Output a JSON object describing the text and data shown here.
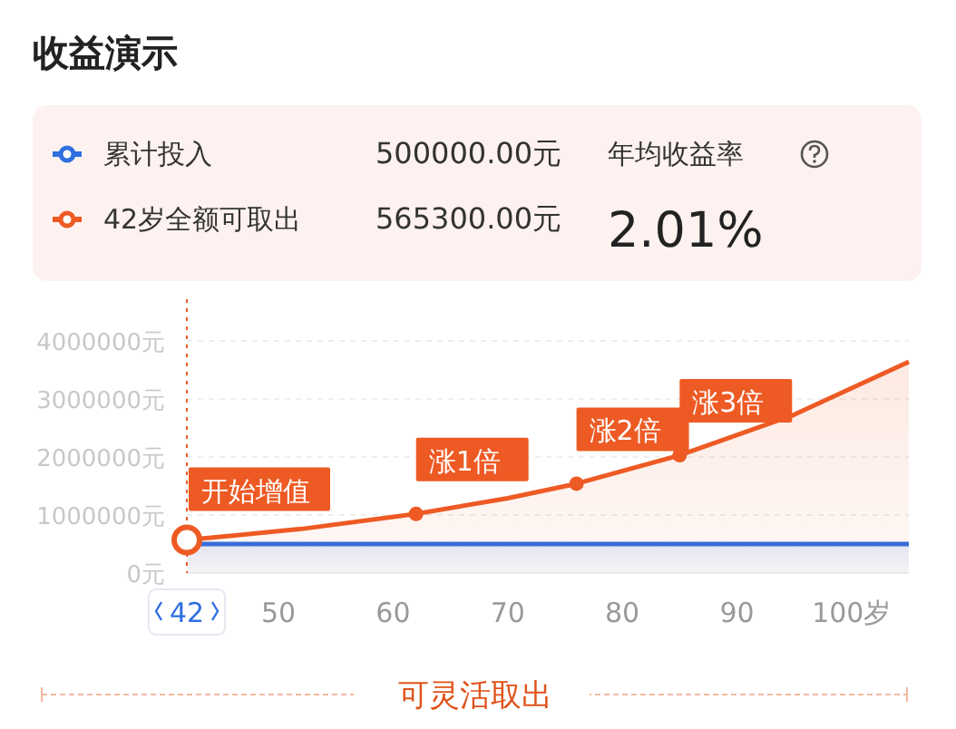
{
  "chart_data": {
    "type": "area",
    "title": "收益演示",
    "x": [
      42,
      52,
      62,
      70,
      76,
      85,
      95,
      105
    ],
    "series": [
      {
        "name": "累计投入",
        "color": "#2f6fe0",
        "values": [
          500000,
          500000,
          500000,
          500000,
          500000,
          500000,
          500000,
          500000
        ]
      },
      {
        "name": "42岁全额可取出",
        "color": "#ee5a24",
        "values": [
          570000,
          760000,
          1020000,
          1290000,
          1540000,
          2030000,
          2730000,
          3640000
        ]
      },
      {
        "type": "scatter",
        "color": "#ee5a24",
        "x": [
          42
        ],
        "values": [
          570000
        ]
      },
      {
        "type": "scatter",
        "color": "#ee5a24",
        "x": [
          62,
          76,
          85
        ],
        "values": [
          1020000,
          1540000,
          2030000
        ]
      }
    ],
    "xlim": [
      42,
      105
    ],
    "xticks": [
      {
        "value": 42,
        "label": "42"
      },
      50,
      60,
      70,
      80,
      90,
      {
        "value": 100,
        "label": "100岁"
      }
    ],
    "ylim": [
      0,
      4000000
    ],
    "yticks": [
      {
        "value": 0,
        "label": "0元"
      },
      {
        "value": 1000000,
        "label": "1000000元"
      },
      {
        "value": 2000000,
        "label": "2000000元"
      },
      {
        "value": 3000000,
        "label": "3000000元"
      },
      {
        "value": 4000000,
        "label": "4000000元"
      }
    ],
    "grid": "y",
    "legend": "top",
    "ref_lines": [
      {
        "axis": "x",
        "value": 42,
        "color": "#ee5a24",
        "line_style": "dotted"
      }
    ],
    "annotations": [
      "500000.00元",
      "565300.00元",
      "年均收益率",
      "2.01%",
      "可灵活取出",
      {
        "text": "开始增值",
        "x": 42,
        "y": 570000
      },
      {
        "text": "涨1倍",
        "x": 62,
        "y": 1020000
      },
      {
        "text": "涨2倍",
        "x": 76,
        "y": 1540000
      },
      {
        "text": "涨3倍",
        "x": 85,
        "y": 2030000
      }
    ]
  }
}
